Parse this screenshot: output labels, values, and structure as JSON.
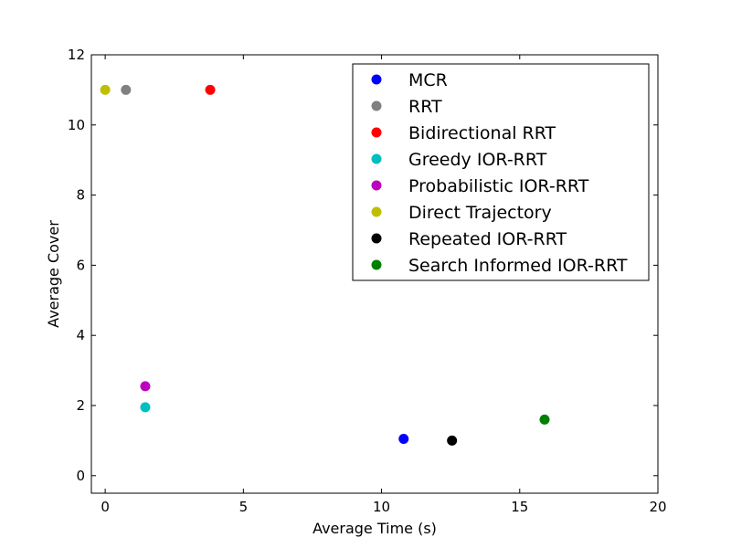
{
  "chart_data": {
    "type": "scatter",
    "title": "",
    "xlabel": "Average Time (s)",
    "ylabel": "Average Cover",
    "xlim": [
      -0.5,
      20
    ],
    "ylim": [
      -0.5,
      12
    ],
    "x_ticks": [
      "0",
      "5",
      "10",
      "15",
      "20"
    ],
    "y_ticks": [
      "0",
      "2",
      "4",
      "6",
      "8",
      "10",
      "12"
    ],
    "grid": false,
    "legend_position": "upper right",
    "series": [
      {
        "name": "MCR",
        "color": "#0000ff",
        "points": [
          {
            "x": 10.8,
            "y": 1.05
          }
        ]
      },
      {
        "name": "RRT",
        "color": "#808080",
        "points": [
          {
            "x": 0.75,
            "y": 11.0
          }
        ]
      },
      {
        "name": "Bidirectional RRT",
        "color": "#ff0000",
        "points": [
          {
            "x": 3.8,
            "y": 11.0
          }
        ]
      },
      {
        "name": "Greedy IOR-RRT",
        "color": "#00bfbf",
        "points": [
          {
            "x": 1.45,
            "y": 1.95
          }
        ]
      },
      {
        "name": "Probabilistic IOR-RRT",
        "color": "#bf00bf",
        "points": [
          {
            "x": 1.45,
            "y": 2.55
          }
        ]
      },
      {
        "name": "Direct Trajectory",
        "color": "#bfbf00",
        "points": [
          {
            "x": 0.0,
            "y": 11.0
          }
        ]
      },
      {
        "name": "Repeated IOR-RRT",
        "color": "#000000",
        "points": [
          {
            "x": 12.55,
            "y": 1.0
          }
        ]
      },
      {
        "name": "Search Informed IOR-RRT",
        "color": "#008000",
        "points": [
          {
            "x": 15.9,
            "y": 1.6
          }
        ]
      }
    ]
  }
}
